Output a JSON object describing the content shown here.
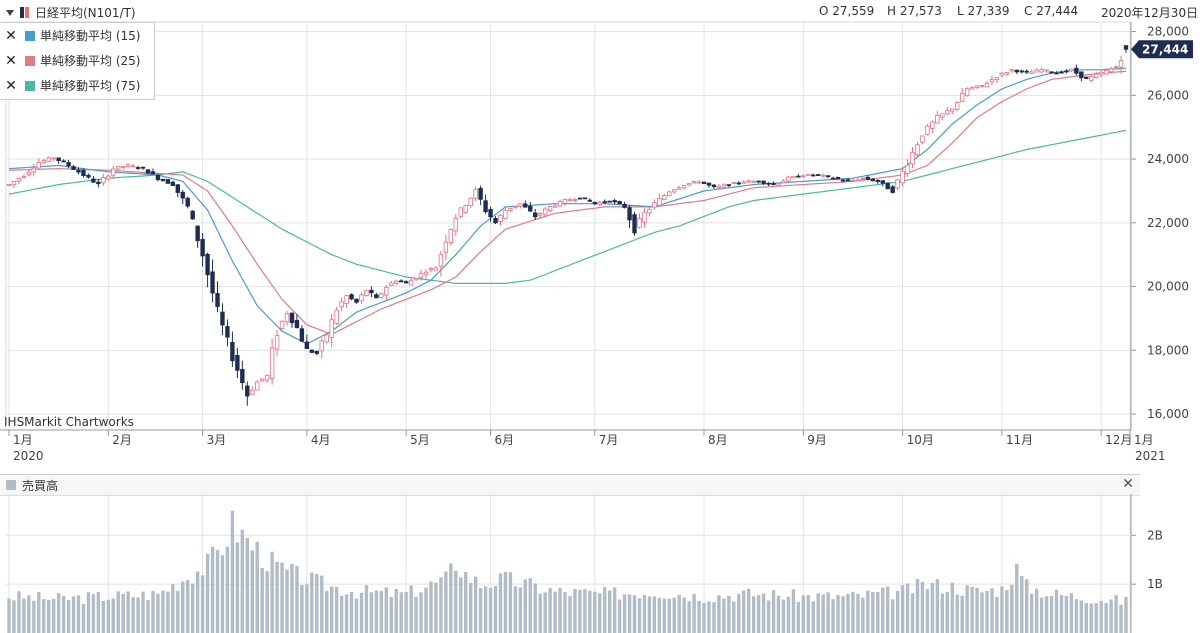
{
  "header": {
    "symbol": "日経平均(N101/T)",
    "open": "O 27,559",
    "high": "H 27,573",
    "low": "L 27,339",
    "close": "C 27,444",
    "date": "2020年12月30日"
  },
  "legend": {
    "items": [
      {
        "label": "単純移動平均 (15)",
        "color": "#4a9bd1"
      },
      {
        "label": "単純移動平均 (25)",
        "color": "#e07c86"
      },
      {
        "label": "単純移動平均 (75)",
        "color": "#4cb8a2"
      }
    ]
  },
  "watermark": "IHSMarkit Chartworks",
  "volume_panel": {
    "title": "売買高"
  },
  "colors": {
    "up": "#e8707e",
    "down": "#1e2d52",
    "ma15": "#4a9bd1",
    "ma25": "#e07c86",
    "ma75": "#4cb8a2",
    "volume": "#b0bcc6",
    "last_tag": "#1e2d52"
  },
  "chart_data": [
    {
      "type": "candlestick",
      "title": "日経平均(N101/T)",
      "y_ticks": [
        "16,000",
        "18,000",
        "20,000",
        "22,000",
        "24,000",
        "26,000",
        "28,000"
      ],
      "ylim": [
        15500,
        28300
      ],
      "x_ticks": [
        "1月",
        "2月",
        "3月",
        "4月",
        "5月",
        "6月",
        "7月",
        "8月",
        "9月",
        "10月",
        "11月",
        "12月",
        "1月"
      ],
      "x_tick_years": [
        "2020",
        "2021"
      ],
      "last_value_label": "27,444",
      "ohlc_last": {
        "open": 27559,
        "high": 27573,
        "low": 27339,
        "close": 27444
      },
      "series": [
        {
          "name": "単純移動平均 (15)"
        },
        {
          "name": "単純移動平均 (25)"
        },
        {
          "name": "単純移動平均 (75)"
        }
      ],
      "price_path": [
        [
          0,
          23200
        ],
        [
          3,
          23500
        ],
        [
          6,
          23900
        ],
        [
          9,
          24050
        ],
        [
          12,
          23800
        ],
        [
          15,
          23500
        ],
        [
          18,
          23200
        ],
        [
          21,
          23700
        ],
        [
          24,
          23800
        ],
        [
          27,
          23700
        ],
        [
          30,
          23400
        ],
        [
          33,
          23200
        ],
        [
          36,
          22500
        ],
        [
          39,
          21000
        ],
        [
          42,
          19200
        ],
        [
          45,
          17800
        ],
        [
          48,
          16600
        ],
        [
          50,
          17000
        ],
        [
          52,
          17200
        ],
        [
          54,
          18600
        ],
        [
          56,
          19200
        ],
        [
          58,
          18700
        ],
        [
          60,
          18000
        ],
        [
          62,
          17900
        ],
        [
          64,
          18500
        ],
        [
          66,
          19300
        ],
        [
          68,
          19700
        ],
        [
          70,
          19500
        ],
        [
          72,
          19900
        ],
        [
          74,
          19600
        ],
        [
          76,
          20000
        ],
        [
          78,
          20200
        ],
        [
          80,
          20100
        ],
        [
          82,
          20300
        ],
        [
          84,
          20500
        ],
        [
          86,
          20600
        ],
        [
          88,
          21500
        ],
        [
          90,
          22200
        ],
        [
          92,
          22600
        ],
        [
          94,
          23000
        ],
        [
          96,
          22400
        ],
        [
          98,
          22000
        ],
        [
          100,
          22400
        ],
        [
          103,
          22600
        ],
        [
          106,
          22200
        ],
        [
          109,
          22500
        ],
        [
          112,
          22700
        ],
        [
          115,
          22800
        ],
        [
          118,
          22600
        ],
        [
          121,
          22700
        ],
        [
          124,
          22500
        ],
        [
          126,
          21800
        ],
        [
          128,
          22300
        ],
        [
          130,
          22600
        ],
        [
          133,
          23000
        ],
        [
          136,
          23200
        ],
        [
          139,
          23300
        ],
        [
          142,
          23100
        ],
        [
          145,
          23200
        ],
        [
          148,
          23300
        ],
        [
          151,
          23300
        ],
        [
          154,
          23200
        ],
        [
          157,
          23400
        ],
        [
          160,
          23500
        ],
        [
          163,
          23500
        ],
        [
          166,
          23400
        ],
        [
          169,
          23300
        ],
        [
          172,
          23400
        ],
        [
          175,
          23300
        ],
        [
          178,
          23000
        ],
        [
          181,
          23900
        ],
        [
          184,
          24800
        ],
        [
          187,
          25300
        ],
        [
          190,
          25600
        ],
        [
          193,
          26200
        ],
        [
          196,
          26300
        ],
        [
          199,
          26600
        ],
        [
          202,
          26800
        ],
        [
          205,
          26700
        ],
        [
          208,
          26800
        ],
        [
          211,
          26700
        ],
        [
          214,
          26800
        ],
        [
          217,
          26500
        ],
        [
          220,
          26700
        ],
        [
          223,
          26900
        ],
        [
          225,
          27500
        ]
      ],
      "ma15_path": [
        [
          0,
          23700
        ],
        [
          10,
          23800
        ],
        [
          20,
          23600
        ],
        [
          30,
          23500
        ],
        [
          35,
          23300
        ],
        [
          40,
          22400
        ],
        [
          45,
          20800
        ],
        [
          50,
          19400
        ],
        [
          55,
          18600
        ],
        [
          60,
          18200
        ],
        [
          65,
          18600
        ],
        [
          70,
          19200
        ],
        [
          75,
          19500
        ],
        [
          80,
          19800
        ],
        [
          85,
          20200
        ],
        [
          90,
          21000
        ],
        [
          95,
          21900
        ],
        [
          100,
          22500
        ],
        [
          110,
          22600
        ],
        [
          120,
          22600
        ],
        [
          130,
          22500
        ],
        [
          140,
          23000
        ],
        [
          150,
          23200
        ],
        [
          160,
          23300
        ],
        [
          170,
          23400
        ],
        [
          180,
          23700
        ],
        [
          185,
          24300
        ],
        [
          190,
          25100
        ],
        [
          195,
          25700
        ],
        [
          200,
          26200
        ],
        [
          205,
          26500
        ],
        [
          210,
          26700
        ],
        [
          215,
          26800
        ],
        [
          220,
          26800
        ],
        [
          225,
          26850
        ]
      ],
      "ma25_path": [
        [
          0,
          23650
        ],
        [
          10,
          23700
        ],
        [
          20,
          23650
        ],
        [
          30,
          23550
        ],
        [
          35,
          23500
        ],
        [
          40,
          23000
        ],
        [
          45,
          21900
        ],
        [
          50,
          20700
        ],
        [
          55,
          19600
        ],
        [
          60,
          18800
        ],
        [
          65,
          18500
        ],
        [
          70,
          18900
        ],
        [
          75,
          19300
        ],
        [
          80,
          19600
        ],
        [
          85,
          19900
        ],
        [
          90,
          20300
        ],
        [
          95,
          21100
        ],
        [
          100,
          21800
        ],
        [
          110,
          22300
        ],
        [
          120,
          22500
        ],
        [
          130,
          22500
        ],
        [
          140,
          22700
        ],
        [
          150,
          23100
        ],
        [
          160,
          23200
        ],
        [
          170,
          23300
        ],
        [
          180,
          23500
        ],
        [
          185,
          23800
        ],
        [
          190,
          24500
        ],
        [
          195,
          25300
        ],
        [
          200,
          25800
        ],
        [
          205,
          26200
        ],
        [
          210,
          26500
        ],
        [
          215,
          26600
        ],
        [
          220,
          26700
        ],
        [
          225,
          26750
        ]
      ],
      "ma75_path": [
        [
          0,
          22900
        ],
        [
          10,
          23200
        ],
        [
          20,
          23400
        ],
        [
          30,
          23500
        ],
        [
          35,
          23600
        ],
        [
          40,
          23300
        ],
        [
          45,
          22800
        ],
        [
          50,
          22300
        ],
        [
          55,
          21800
        ],
        [
          60,
          21400
        ],
        [
          65,
          21000
        ],
        [
          70,
          20700
        ],
        [
          75,
          20500
        ],
        [
          80,
          20300
        ],
        [
          85,
          20200
        ],
        [
          90,
          20100
        ],
        [
          95,
          20100
        ],
        [
          100,
          20100
        ],
        [
          105,
          20200
        ],
        [
          110,
          20500
        ],
        [
          115,
          20800
        ],
        [
          120,
          21100
        ],
        [
          125,
          21400
        ],
        [
          130,
          21700
        ],
        [
          135,
          21900
        ],
        [
          140,
          22200
        ],
        [
          145,
          22500
        ],
        [
          150,
          22700
        ],
        [
          155,
          22800
        ],
        [
          160,
          22900
        ],
        [
          165,
          23000
        ],
        [
          170,
          23100
        ],
        [
          175,
          23200
        ],
        [
          180,
          23300
        ],
        [
          185,
          23500
        ],
        [
          190,
          23700
        ],
        [
          195,
          23900
        ],
        [
          200,
          24100
        ],
        [
          205,
          24300
        ],
        [
          210,
          24450
        ],
        [
          215,
          24600
        ],
        [
          220,
          24750
        ],
        [
          225,
          24900
        ]
      ]
    },
    {
      "type": "bar",
      "title": "売買高",
      "y_ticks": [
        "1B",
        "2B"
      ],
      "volume_path": [
        [
          0,
          0.75
        ],
        [
          10,
          0.7
        ],
        [
          20,
          0.75
        ],
        [
          30,
          0.8
        ],
        [
          35,
          1.1
        ],
        [
          40,
          1.4
        ],
        [
          43,
          1.8
        ],
        [
          45,
          2.2
        ],
        [
          47,
          2.0
        ],
        [
          49,
          1.8
        ],
        [
          52,
          1.5
        ],
        [
          55,
          1.3
        ],
        [
          60,
          1.1
        ],
        [
          65,
          0.95
        ],
        [
          70,
          0.85
        ],
        [
          80,
          0.8
        ],
        [
          88,
          1.1
        ],
        [
          90,
          1.45
        ],
        [
          92,
          1.2
        ],
        [
          95,
          1.0
        ],
        [
          100,
          1.1
        ],
        [
          110,
          0.85
        ],
        [
          120,
          0.8
        ],
        [
          130,
          0.85
        ],
        [
          140,
          0.75
        ],
        [
          150,
          0.8
        ],
        [
          160,
          0.75
        ],
        [
          170,
          0.75
        ],
        [
          180,
          0.85
        ],
        [
          185,
          1.0
        ],
        [
          190,
          0.95
        ],
        [
          195,
          0.85
        ],
        [
          200,
          0.9
        ],
        [
          203,
          1.3
        ],
        [
          205,
          0.95
        ],
        [
          210,
          0.8
        ],
        [
          215,
          0.75
        ],
        [
          220,
          0.7
        ],
        [
          225,
          0.65
        ]
      ]
    }
  ]
}
